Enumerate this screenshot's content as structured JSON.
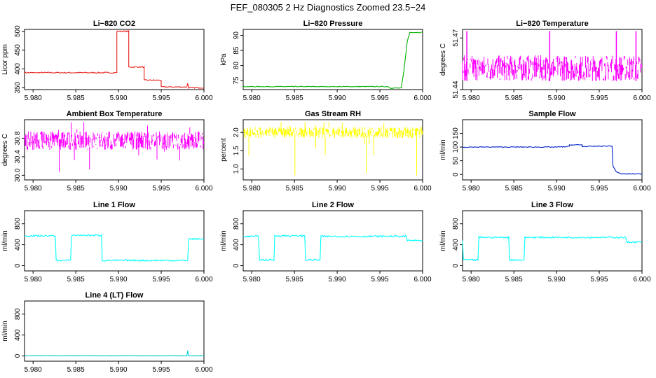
{
  "figure": {
    "title": "FEF_080305  2 Hz Diagnostics Zoomed 23.5−24"
  },
  "chart_data": [
    {
      "type": "line",
      "title": "Li−820 CO2",
      "ylabel": "Licor ppm",
      "color": "#e8211b",
      "xlim": [
        5.979,
        6.0
      ],
      "xticks": [
        "5.980",
        "5.985",
        "5.990",
        "5.995",
        "6.000"
      ],
      "ylim": [
        345,
        505
      ],
      "yticks": [
        "350",
        "400",
        "450",
        "500"
      ],
      "x": [
        5.979,
        5.9898,
        5.9898,
        5.9912,
        5.9912,
        5.993,
        5.993,
        5.995,
        5.995,
        5.998,
        5.9981,
        5.9982,
        6.0
      ],
      "y": [
        390,
        390,
        500,
        500,
        405,
        405,
        370,
        370,
        352,
        352,
        362,
        350,
        350
      ],
      "noise": 1.5
    },
    {
      "type": "line",
      "title": "Li−820 Pressure",
      "ylabel": "kPa",
      "color": "#00b000",
      "xlim": [
        5.979,
        6.0
      ],
      "xticks": [
        "5.980",
        "5.985",
        "5.990",
        "5.995",
        "6.000"
      ],
      "ylim": [
        72,
        92
      ],
      "yticks": [
        "75",
        "80",
        "85",
        "90"
      ],
      "x": [
        5.979,
        5.996,
        5.9962,
        5.9975,
        5.9978,
        5.9982,
        5.9985,
        6.0
      ],
      "y": [
        73.0,
        73.0,
        72.5,
        72.5,
        78,
        88,
        91,
        91
      ],
      "noise": 0.12
    },
    {
      "type": "band",
      "title": "Li−820 Temperature",
      "ylabel": "degrees C",
      "color": "#ff00ff",
      "xlim": [
        5.979,
        6.0
      ],
      "xticks": [
        "5.980",
        "5.985",
        "5.990",
        "5.995",
        "6.000"
      ],
      "ylim": [
        51.44,
        51.475
      ],
      "yticks": [
        "51.44",
        "51.47"
      ],
      "x": [
        5.979,
        6.0
      ],
      "y": [
        51.445,
        51.46
      ],
      "spikes": [
        5.9795,
        5.9892,
        5.997,
        5.9993
      ],
      "spike_y": 51.474
    },
    {
      "type": "band",
      "title": "Ambient Box Temperature",
      "ylabel": "degrees C",
      "color": "#ff00ff",
      "xlim": [
        5.979,
        6.0
      ],
      "xticks": [
        "5.980",
        "5.985",
        "5.990",
        "5.995",
        "6.000"
      ],
      "ylim": [
        29.9,
        31.2
      ],
      "yticks": [
        "30.0",
        "30.4",
        "30.8"
      ],
      "x": [
        5.979,
        6.0
      ],
      "y": [
        30.55,
        30.95
      ],
      "noise_out": [
        30.0,
        31.15
      ]
    },
    {
      "type": "band",
      "title": "Gas Stream RH",
      "ylabel": "percent",
      "color": "#ffff00",
      "xlim": [
        5.979,
        6.0
      ],
      "xticks": [
        "5.980",
        "5.985",
        "5.990",
        "5.995",
        "6.000"
      ],
      "ylim": [
        0.7,
        2.35
      ],
      "yticks": [
        "1.0",
        "1.5",
        "2.0"
      ],
      "x": [
        5.979,
        6.0
      ],
      "y": [
        1.85,
        2.15
      ],
      "noise_out": [
        0.75,
        2.3
      ]
    },
    {
      "type": "line",
      "title": "Sample Flow",
      "ylabel": "ml/min",
      "color": "#0022cc",
      "xlim": [
        5.979,
        6.0
      ],
      "xticks": [
        "5.980",
        "5.985",
        "5.990",
        "5.995",
        "6.000"
      ],
      "ylim": [
        -20,
        200
      ],
      "yticks": [
        "0",
        "50",
        "100",
        "150"
      ],
      "x": [
        5.979,
        5.99,
        5.9915,
        5.9915,
        5.993,
        5.993,
        5.9965,
        5.9966,
        5.997,
        5.9975,
        6.0
      ],
      "y": [
        100,
        100,
        102,
        108,
        108,
        102,
        104,
        30,
        10,
        2,
        2
      ],
      "noise": 1.5
    },
    {
      "type": "line",
      "title": "Line 1 Flow",
      "ylabel": "ml/min",
      "color": "#00ffff",
      "xlim": [
        5.979,
        6.0
      ],
      "xticks": [
        "5.980",
        "5.985",
        "5.990",
        "5.995",
        "6.000"
      ],
      "ylim": [
        -100,
        1050
      ],
      "yticks": [
        "0",
        "400",
        "800"
      ],
      "x": [
        5.979,
        5.9826,
        5.9827,
        5.9844,
        5.9845,
        5.988,
        5.9881,
        5.9981,
        5.9982,
        6.0
      ],
      "y": [
        570,
        570,
        100,
        100,
        580,
        580,
        100,
        100,
        510,
        510
      ],
      "noise": 15
    },
    {
      "type": "line",
      "title": "Line 2 Flow",
      "ylabel": "ml/min",
      "color": "#00ffff",
      "xlim": [
        5.979,
        6.0
      ],
      "xticks": [
        "5.980",
        "5.985",
        "5.990",
        "5.995",
        "6.000"
      ],
      "ylim": [
        -100,
        1050
      ],
      "yticks": [
        "0",
        "400",
        "800"
      ],
      "x": [
        5.979,
        5.9808,
        5.9809,
        5.9826,
        5.9827,
        5.9862,
        5.9863,
        5.988,
        5.9881,
        5.9981,
        5.9982,
        6.0
      ],
      "y": [
        560,
        560,
        110,
        110,
        570,
        570,
        110,
        110,
        560,
        560,
        480,
        480
      ],
      "noise": 15
    },
    {
      "type": "line",
      "title": "Line 3 Flow",
      "ylabel": "ml/min",
      "color": "#00ffff",
      "xlim": [
        5.979,
        6.0
      ],
      "xticks": [
        "5.980",
        "5.985",
        "5.990",
        "5.995",
        "6.000"
      ],
      "ylim": [
        -100,
        1050
      ],
      "yticks": [
        "0",
        "400",
        "800"
      ],
      "x": [
        5.979,
        5.9791,
        5.9808,
        5.9809,
        5.9844,
        5.9845,
        5.9862,
        5.9863,
        5.9981,
        5.9982,
        6.0
      ],
      "y": [
        480,
        110,
        110,
        540,
        540,
        110,
        110,
        540,
        540,
        450,
        450
      ],
      "noise": 15
    },
    {
      "type": "line",
      "title": "Line 4 (LT) Flow",
      "ylabel": "ml/min",
      "color": "#00cccc",
      "xlim": [
        5.979,
        6.0
      ],
      "xticks": [
        "5.980",
        "5.985",
        "5.990",
        "5.995",
        "6.000"
      ],
      "ylim": [
        -100,
        1050
      ],
      "yticks": [
        "0",
        "400",
        "800"
      ],
      "x": [
        5.979,
        5.998,
        5.9981,
        5.9982,
        5.9983,
        6.0
      ],
      "y": [
        5,
        5,
        100,
        5,
        5,
        5
      ],
      "noise": 3
    }
  ]
}
